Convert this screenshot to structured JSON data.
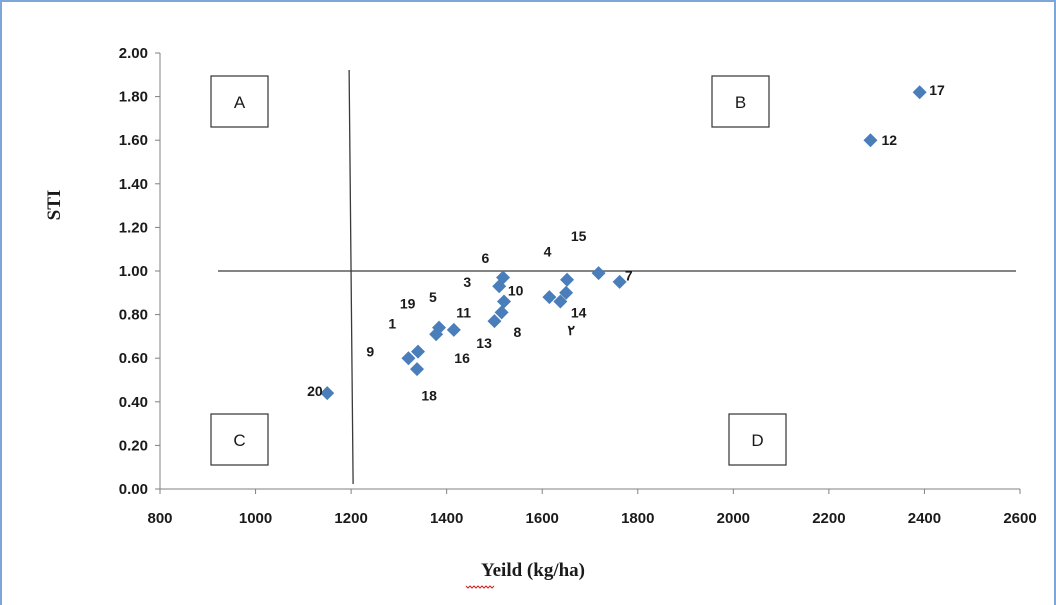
{
  "chart_data": {
    "type": "scatter",
    "xlabel": "Yeild (kg/ha)",
    "ylabel": "STI",
    "xlim": [
      800,
      2600
    ],
    "ylim": [
      0,
      2
    ],
    "x_ticks": [
      "800",
      "1000",
      "1200",
      "1400",
      "1600",
      "1800",
      "2000",
      "2200",
      "2400",
      "2600"
    ],
    "y_ticks": [
      "0.00",
      "0.20",
      "0.40",
      "0.60",
      "0.80",
      "1.00",
      "1.20",
      "1.40",
      "1.60",
      "1.80",
      "2.00"
    ],
    "grid": false,
    "marker_color": "#4a7ebb",
    "reference_lines": {
      "x": 1200,
      "y": 1.0
    },
    "quadrants": [
      {
        "label": "A",
        "position": "top-left"
      },
      {
        "label": "B",
        "position": "top-right"
      },
      {
        "label": "C",
        "position": "bottom-left"
      },
      {
        "label": "D",
        "position": "bottom-right"
      }
    ],
    "points": [
      {
        "x": 1320,
        "y": 0.6
      },
      {
        "x": 1340,
        "y": 0.63
      },
      {
        "x": 1338,
        "y": 0.55
      },
      {
        "x": 1378,
        "y": 0.71
      },
      {
        "x": 1384,
        "y": 0.74
      },
      {
        "x": 1415,
        "y": 0.73
      },
      {
        "x": 1500,
        "y": 0.77
      },
      {
        "x": 1510,
        "y": 0.93
      },
      {
        "x": 1515,
        "y": 0.81
      },
      {
        "x": 1518,
        "y": 0.97
      },
      {
        "x": 1520,
        "y": 0.86
      },
      {
        "x": 1615,
        "y": 0.88
      },
      {
        "x": 1638,
        "y": 0.86
      },
      {
        "x": 1650,
        "y": 0.9
      },
      {
        "x": 1652,
        "y": 0.96
      },
      {
        "x": 1718,
        "y": 0.99
      },
      {
        "x": 1762,
        "y": 0.95
      },
      {
        "x": 1150,
        "y": 0.44
      },
      {
        "x": 2287,
        "y": 1.6
      },
      {
        "x": 2390,
        "y": 1.82
      }
    ],
    "point_labels": [
      {
        "text": "20",
        "x": 1108,
        "y": 0.45
      },
      {
        "text": "9",
        "x": 1232,
        "y": 0.63
      },
      {
        "text": "1",
        "x": 1278,
        "y": 0.76
      },
      {
        "text": "19",
        "x": 1302,
        "y": 0.85
      },
      {
        "text": "5",
        "x": 1363,
        "y": 0.88
      },
      {
        "text": "11",
        "x": 1420,
        "y": 0.81
      },
      {
        "text": "16",
        "x": 1416,
        "y": 0.6
      },
      {
        "text": "18",
        "x": 1347,
        "y": 0.43
      },
      {
        "text": "3",
        "x": 1435,
        "y": 0.95
      },
      {
        "text": "6",
        "x": 1473,
        "y": 1.06
      },
      {
        "text": "10",
        "x": 1528,
        "y": 0.91
      },
      {
        "text": "13",
        "x": 1462,
        "y": 0.67
      },
      {
        "text": "8",
        "x": 1540,
        "y": 0.72
      },
      {
        "text": "4",
        "x": 1603,
        "y": 1.09
      },
      {
        "text": "15",
        "x": 1660,
        "y": 1.16
      },
      {
        "text": "7",
        "x": 1773,
        "y": 0.98
      },
      {
        "text": "14",
        "x": 1660,
        "y": 0.81
      },
      {
        "text": "٢",
        "x": 1653,
        "y": 0.73
      },
      {
        "text": "12",
        "x": 2310,
        "y": 1.6
      },
      {
        "text": "17",
        "x": 2410,
        "y": 1.83
      }
    ]
  }
}
